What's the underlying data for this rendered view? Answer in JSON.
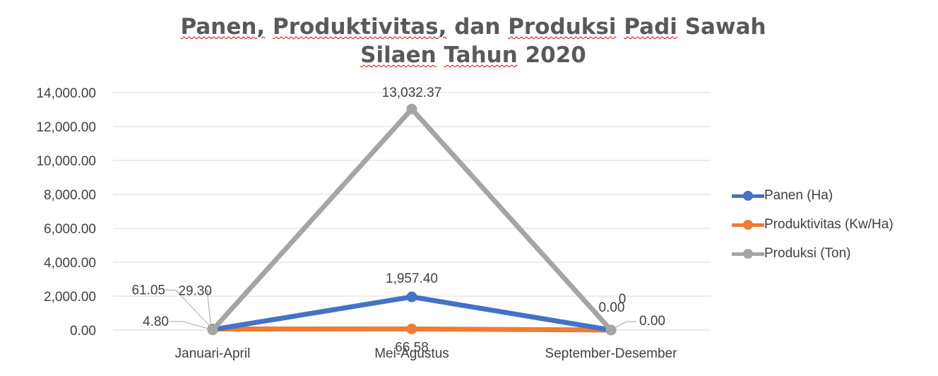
{
  "chart_data": {
    "type": "line",
    "title_lines": [
      "Panen, Produktivitas, dan Produksi Padi Sawah",
      "Silaen Tahun 2020"
    ],
    "categories": [
      "Januari-April",
      "Mei-Agustus",
      "September-Desember"
    ],
    "ylim": [
      0,
      14000
    ],
    "yticks": [
      "0.00",
      "2,000.00",
      "4,000.00",
      "6,000.00",
      "8,000.00",
      "10,000.00",
      "12,000.00",
      "14,000.00"
    ],
    "grid": true,
    "legend_position": "right",
    "series": [
      {
        "name": "Panen (Ha)",
        "color": "#4472c4",
        "values": [
          29.3,
          1957.4,
          0
        ],
        "labels": [
          "29.30",
          "1,957.40",
          "0"
        ]
      },
      {
        "name": "Produktivitas (Kw/Ha)",
        "color": "#ed7d31",
        "values": [
          61.05,
          66.58,
          0
        ],
        "labels": [
          "61.05",
          "66.58",
          "0.00"
        ]
      },
      {
        "name": "Produksi (Ton)",
        "color": "#a5a5a5",
        "values": [
          4.8,
          13032.37,
          0
        ],
        "labels": [
          "4.80",
          "13,032.37",
          "0.00"
        ]
      }
    ]
  }
}
